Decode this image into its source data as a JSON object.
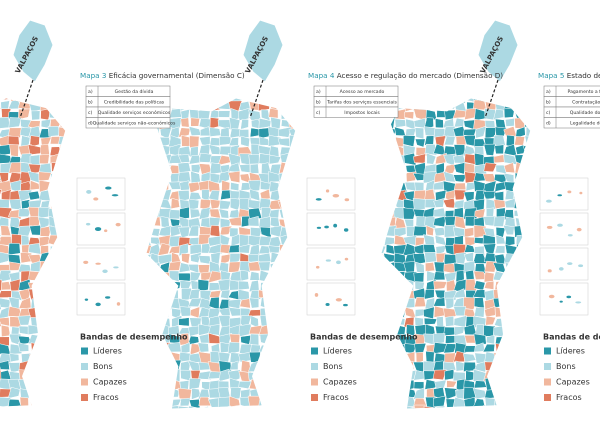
{
  "panels": [
    {
      "valpacos": "VALPAÇOS"
    },
    {
      "valpacos": "VALPAÇOS",
      "map_label": "Mapa 3",
      "title": "Eficácia governamental (Dimensão C)",
      "items": [
        {
          "letter": "a)",
          "text": "Gestão da dívida"
        },
        {
          "letter": "b)",
          "text": "Credibilidade das políticas"
        },
        {
          "letter": "c)",
          "text": "Qualidade serviços económicos"
        },
        {
          "letter": "d)",
          "text": "Qualidade serviços não-económicos"
        }
      ],
      "legend_title": "Bandas de desempenho",
      "legend": [
        "Líderes",
        "Bons",
        "Capazes",
        "Fracos"
      ]
    },
    {
      "valpacos": "VALPAÇOS",
      "map_label": "Mapa 4",
      "title": "Acesso e regulação do mercado (Dimensão D)",
      "items": [
        {
          "letter": "a)",
          "text": "Acesso ao mercado"
        },
        {
          "letter": "b)",
          "text": "Tarifas dos serviços essenciais"
        },
        {
          "letter": "c)",
          "text": "Impostos locais"
        }
      ],
      "legend_title": "Bandas de desempenho",
      "legend": [
        "Líderes",
        "Bons",
        "Capazes",
        "Fracos"
      ]
    },
    {
      "map_label": "Mapa 5",
      "title": "Estado de direito",
      "items": [
        {
          "letter": "a)",
          "text": "Pagamento a fornece"
        },
        {
          "letter": "b)",
          "text": "Contratação públ"
        },
        {
          "letter": "c)",
          "text": "Qualidade dos cont"
        },
        {
          "letter": "d)",
          "text": "Legalidade de proc"
        }
      ],
      "legend_title": "Bandas de desempenho",
      "legend": [
        "Líderes",
        "Bons",
        "Capazes",
        "Fracos"
      ]
    }
  ]
}
